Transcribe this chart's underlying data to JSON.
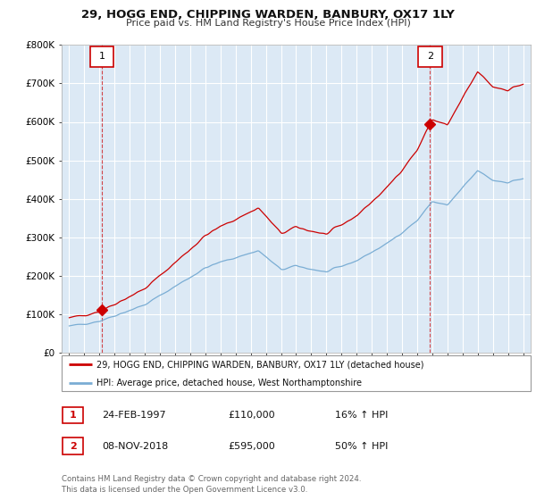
{
  "title": "29, HOGG END, CHIPPING WARDEN, BANBURY, OX17 1LY",
  "subtitle": "Price paid vs. HM Land Registry's House Price Index (HPI)",
  "background_color": "#ffffff",
  "plot_bg_color": "#dce9f5",
  "grid_color": "#ffffff",
  "legend_label_red": "29, HOGG END, CHIPPING WARDEN, BANBURY, OX17 1LY (detached house)",
  "legend_label_blue": "HPI: Average price, detached house, West Northamptonshire",
  "transaction1_label": "1",
  "transaction1_date": "24-FEB-1997",
  "transaction1_price": "£110,000",
  "transaction1_hpi": "16% ↑ HPI",
  "transaction2_label": "2",
  "transaction2_date": "08-NOV-2018",
  "transaction2_price": "£595,000",
  "transaction2_hpi": "50% ↑ HPI",
  "footer": "Contains HM Land Registry data © Crown copyright and database right 2024.\nThis data is licensed under the Open Government Licence v3.0.",
  "red_color": "#cc0000",
  "blue_color": "#7aadd4",
  "ylim_min": 0,
  "ylim_max": 800000,
  "yticks": [
    0,
    100000,
    200000,
    300000,
    400000,
    500000,
    600000,
    700000,
    800000
  ],
  "ytick_labels": [
    "£0",
    "£100K",
    "£200K",
    "£300K",
    "£400K",
    "£500K",
    "£600K",
    "£700K",
    "£800K"
  ],
  "transaction1_year": 1997.15,
  "transaction2_year": 2018.85,
  "transaction1_value": 110000,
  "transaction2_value": 595000
}
